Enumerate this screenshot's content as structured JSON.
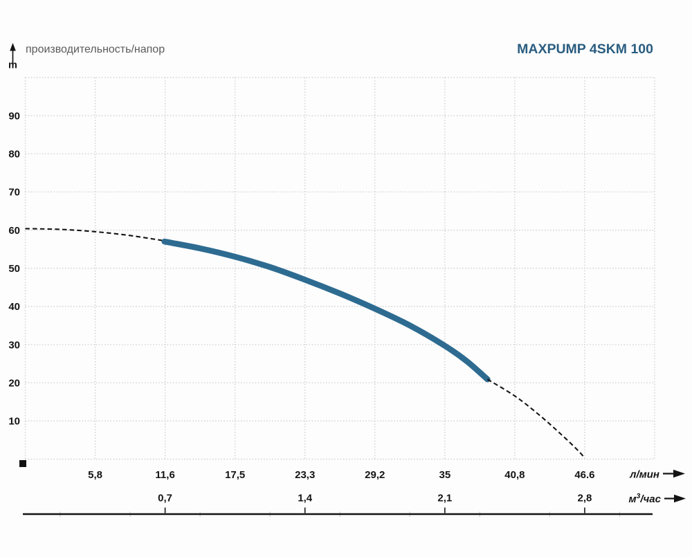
{
  "header": {
    "chart_label": "производительность/напор",
    "model": "MAXPUMP 4SKM 100"
  },
  "axes": {
    "y_unit": "m",
    "x1_unit": "л/мин",
    "x2_unit_prefix": "м",
    "x2_unit_sup": "3",
    "x2_unit_suffix": "/час"
  },
  "colors": {
    "curve": "#2e6b91",
    "ink": "#141414",
    "grid": "#c9c9c9",
    "minor_tick": "#cfcfcf",
    "title": "#2a5d80",
    "muted_text": "#5a5a5a"
  },
  "chart_data": {
    "type": "line",
    "title": "производительность/напор",
    "model": "MAXPUMP 4SKM 100",
    "ylabel": "m",
    "xlabel_primary": "л/мин",
    "xlabel_secondary": "м3/час",
    "grid": true,
    "legend": false,
    "xlim": [
      0,
      52.425
    ],
    "ylim": [
      0,
      100
    ],
    "y_grid_step": 10,
    "x_grid_step": 5.825,
    "x_grid_count": 10,
    "y_ticks": [
      10,
      20,
      30,
      40,
      50,
      60,
      70,
      80,
      90
    ],
    "x_ticks_lmin": [
      "5,8",
      "11,6",
      "17,5",
      "23,3",
      "29,2",
      "35",
      "40,8",
      "46.6"
    ],
    "x_ticks_lmin_numeric": [
      5.8,
      11.6,
      17.5,
      23.3,
      29.2,
      35,
      40.8,
      46.6
    ],
    "x_ticks_m3h": [
      "0,7",
      "1,4",
      "2,1",
      "2,8"
    ],
    "x_ticks_m3h_numeric": [
      0.7,
      1.4,
      2.1,
      2.8
    ],
    "series": [
      {
        "name": "head-curve-extrapolated-left",
        "style": "dashed",
        "points": [
          [
            0,
            60.4
          ],
          [
            2.9,
            60.2
          ],
          [
            5.8,
            59.6
          ],
          [
            8.7,
            58.6
          ],
          [
            11.6,
            57.2
          ]
        ]
      },
      {
        "name": "head-curve-operating-range",
        "style": "solid",
        "points": [
          [
            11.6,
            57.0
          ],
          [
            14.6,
            55.2
          ],
          [
            17.5,
            53.0
          ],
          [
            20.4,
            50.3
          ],
          [
            23.3,
            47.0
          ],
          [
            26.2,
            43.4
          ],
          [
            29.2,
            39.3
          ],
          [
            32.1,
            34.9
          ],
          [
            35,
            29.6
          ],
          [
            36.8,
            25.6
          ],
          [
            38.5,
            20.9
          ]
        ]
      },
      {
        "name": "head-curve-extrapolated-right",
        "style": "dashed",
        "points": [
          [
            38.5,
            20.9
          ],
          [
            40.8,
            16.5
          ],
          [
            42.8,
            11.6
          ],
          [
            44.6,
            6.6
          ],
          [
            46,
            2.4
          ],
          [
            46.6,
            0.3
          ]
        ]
      }
    ]
  }
}
